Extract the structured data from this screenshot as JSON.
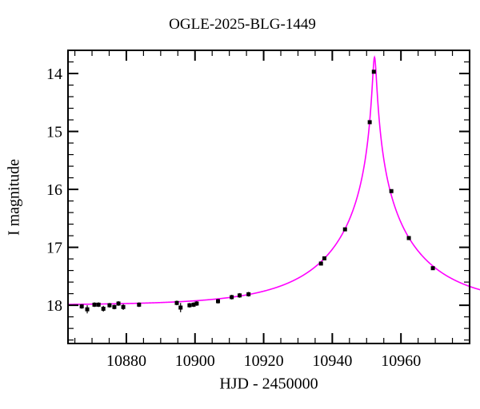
{
  "title": "OGLE-2025-BLG-1449",
  "chart_data": {
    "type": "scatter",
    "title": "OGLE-2025-BLG-1449",
    "xlabel": "HJD - 2450000",
    "ylabel": "I magnitude",
    "xlim": [
      10863,
      10980
    ],
    "ylim_top_mag": 13.6,
    "ylim_bottom_mag": 18.66,
    "y_axis_inverted": true,
    "x_major_ticks": [
      10880,
      10900,
      10920,
      10940,
      10960
    ],
    "x_minor_step": 5,
    "y_major_ticks": [
      14,
      15,
      16,
      17,
      18
    ],
    "y_minor_step": 0.2,
    "grid": false,
    "legend": "none",
    "points": [
      {
        "day": 10867.0,
        "mag": 18.02,
        "err": 0.04
      },
      {
        "day": 10868.6,
        "mag": 18.07,
        "err": 0.07
      },
      {
        "day": 10870.7,
        "mag": 17.99,
        "err": 0.04
      },
      {
        "day": 10871.9,
        "mag": 17.99,
        "err": 0.04
      },
      {
        "day": 10873.3,
        "mag": 18.06,
        "err": 0.05
      },
      {
        "day": 10875.1,
        "mag": 18.0,
        "err": 0.04
      },
      {
        "day": 10876.5,
        "mag": 18.03,
        "err": 0.04
      },
      {
        "day": 10877.7,
        "mag": 17.97,
        "err": 0.04
      },
      {
        "day": 10879.1,
        "mag": 18.03,
        "err": 0.05
      },
      {
        "day": 10883.7,
        "mag": 17.99,
        "err": 0.04
      },
      {
        "day": 10894.7,
        "mag": 17.96,
        "err": 0.04
      },
      {
        "day": 10895.8,
        "mag": 18.04,
        "err": 0.08
      },
      {
        "day": 10898.4,
        "mag": 18.0,
        "err": 0.04
      },
      {
        "day": 10899.6,
        "mag": 17.99,
        "err": 0.04
      },
      {
        "day": 10900.5,
        "mag": 17.97,
        "err": 0.04
      },
      {
        "day": 10906.7,
        "mag": 17.93,
        "err": 0.04
      },
      {
        "day": 10910.7,
        "mag": 17.86,
        "err": 0.04
      },
      {
        "day": 10913.0,
        "mag": 17.83,
        "err": 0.04
      },
      {
        "day": 10915.6,
        "mag": 17.81,
        "err": 0.04
      },
      {
        "day": 10936.7,
        "mag": 17.28,
        "err": 0.03
      },
      {
        "day": 10937.7,
        "mag": 17.19,
        "err": 0.03
      },
      {
        "day": 10943.7,
        "mag": 16.69,
        "err": 0.02
      },
      {
        "day": 10950.9,
        "mag": 14.84,
        "err": 0.02
      },
      {
        "day": 10952.1,
        "mag": 13.97,
        "err": 0.02
      },
      {
        "day": 10957.2,
        "mag": 16.03,
        "err": 0.02
      },
      {
        "day": 10962.3,
        "mag": 16.84,
        "err": 0.03
      },
      {
        "day": 10969.3,
        "mag": 17.36,
        "err": 0.03
      }
    ],
    "model": {
      "type": "paczynski",
      "t0": 10952.3,
      "tE": 28,
      "u0": 0.0194,
      "I0": 18.0,
      "curve_start": 10863,
      "curve_end": 10984
    },
    "colors": {
      "curve": "#ff00ff",
      "points": "#000000",
      "axis": "#000000",
      "background": "#ffffff"
    }
  }
}
